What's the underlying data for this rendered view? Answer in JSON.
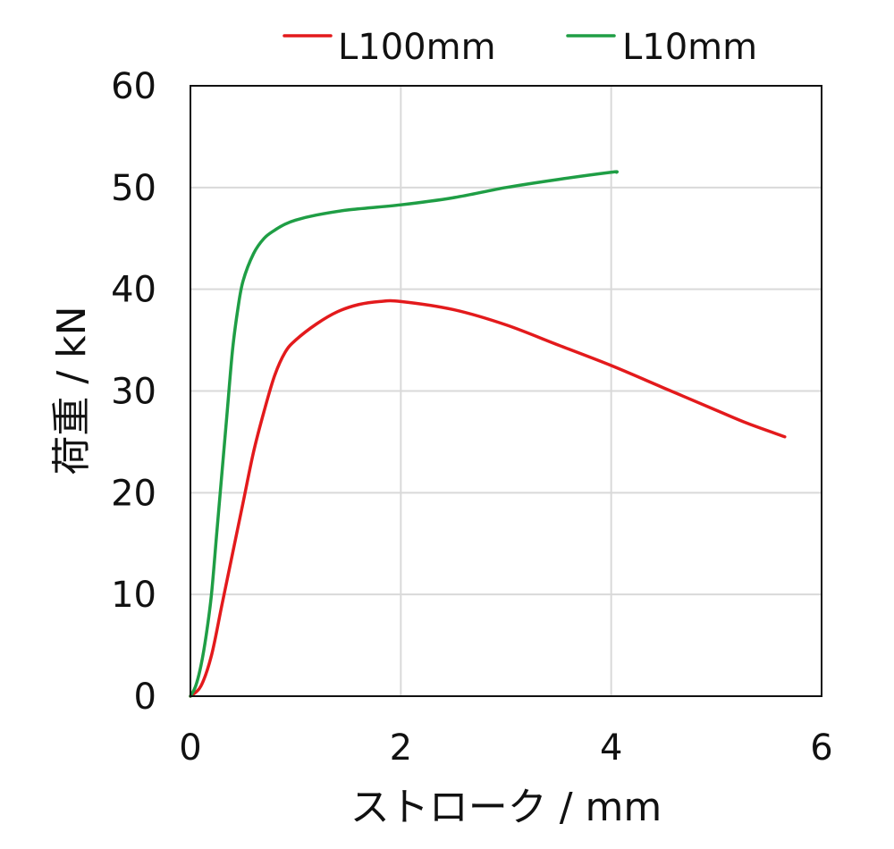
{
  "chart_data": {
    "type": "line",
    "title": "",
    "xlabel": "ストローク / mm",
    "ylabel": "荷重 / kN",
    "xlim": [
      0,
      6
    ],
    "ylim": [
      0,
      60
    ],
    "x_ticks": [
      0,
      2,
      4,
      6
    ],
    "y_ticks": [
      0,
      10,
      20,
      30,
      40,
      50,
      60
    ],
    "grid": true,
    "legend_position": "top",
    "series": [
      {
        "name": "L100mm",
        "color": "#e31a1c",
        "points": [
          [
            0,
            0
          ],
          [
            0.1,
            1
          ],
          [
            0.2,
            4
          ],
          [
            0.3,
            9
          ],
          [
            0.4,
            14
          ],
          [
            0.5,
            19
          ],
          [
            0.6,
            24
          ],
          [
            0.7,
            28
          ],
          [
            0.8,
            31.5
          ],
          [
            0.9,
            33.8
          ],
          [
            1.0,
            35
          ],
          [
            1.2,
            36.6
          ],
          [
            1.4,
            37.8
          ],
          [
            1.6,
            38.5
          ],
          [
            1.8,
            38.8
          ],
          [
            2.0,
            38.8
          ],
          [
            2.5,
            38
          ],
          [
            3.0,
            36.5
          ],
          [
            3.5,
            34.5
          ],
          [
            4.0,
            32.5
          ],
          [
            4.5,
            30.3
          ],
          [
            5.0,
            28.1
          ],
          [
            5.3,
            26.8
          ],
          [
            5.65,
            25.5
          ]
        ]
      },
      {
        "name": "L10mm",
        "color": "#1f9e45",
        "points": [
          [
            0,
            0
          ],
          [
            0.05,
            1
          ],
          [
            0.1,
            3
          ],
          [
            0.15,
            6
          ],
          [
            0.2,
            10
          ],
          [
            0.25,
            16
          ],
          [
            0.3,
            22
          ],
          [
            0.35,
            28
          ],
          [
            0.4,
            34
          ],
          [
            0.45,
            38
          ],
          [
            0.5,
            40.8
          ],
          [
            0.6,
            43.5
          ],
          [
            0.7,
            45
          ],
          [
            0.8,
            45.8
          ],
          [
            0.9,
            46.4
          ],
          [
            1.0,
            46.8
          ],
          [
            1.2,
            47.3
          ],
          [
            1.5,
            47.8
          ],
          [
            2.0,
            48.3
          ],
          [
            2.5,
            49
          ],
          [
            3.0,
            50
          ],
          [
            3.5,
            50.8
          ],
          [
            4.0,
            51.5
          ],
          [
            4.05,
            51.5
          ]
        ]
      }
    ]
  }
}
